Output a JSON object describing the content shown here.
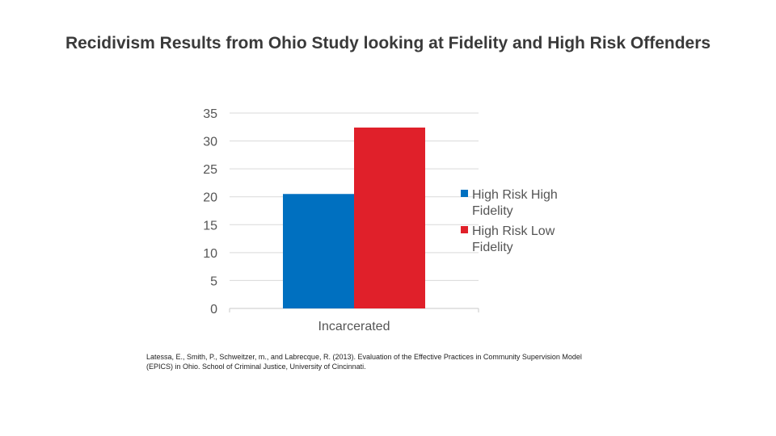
{
  "slide": {
    "title": "Recidivism Results from Ohio Study looking at Fidelity and High Risk Offenders",
    "citation": "Latessa, E., Smith, P., Schweitzer, m., and Labrecque, R. (2013). Evaluation of the Effective Practices in Community Supervision Model (EPICS) in Ohio. School of Criminal Justice, University of Cincinnati."
  },
  "chart_data": {
    "type": "bar",
    "title": "",
    "xlabel": "",
    "ylabel": "",
    "categories": [
      "Incarcerated"
    ],
    "series": [
      {
        "name": "High Risk High Fidelity",
        "values": [
          20.5
        ],
        "color": "#0070c0"
      },
      {
        "name": "High Risk Low Fidelity",
        "values": [
          32.4
        ],
        "color": "#e0202a"
      }
    ],
    "ylim": [
      0,
      35
    ],
    "yticks": [
      0,
      5,
      10,
      15,
      20,
      25,
      30,
      35
    ],
    "grid": true,
    "legend": "right"
  }
}
